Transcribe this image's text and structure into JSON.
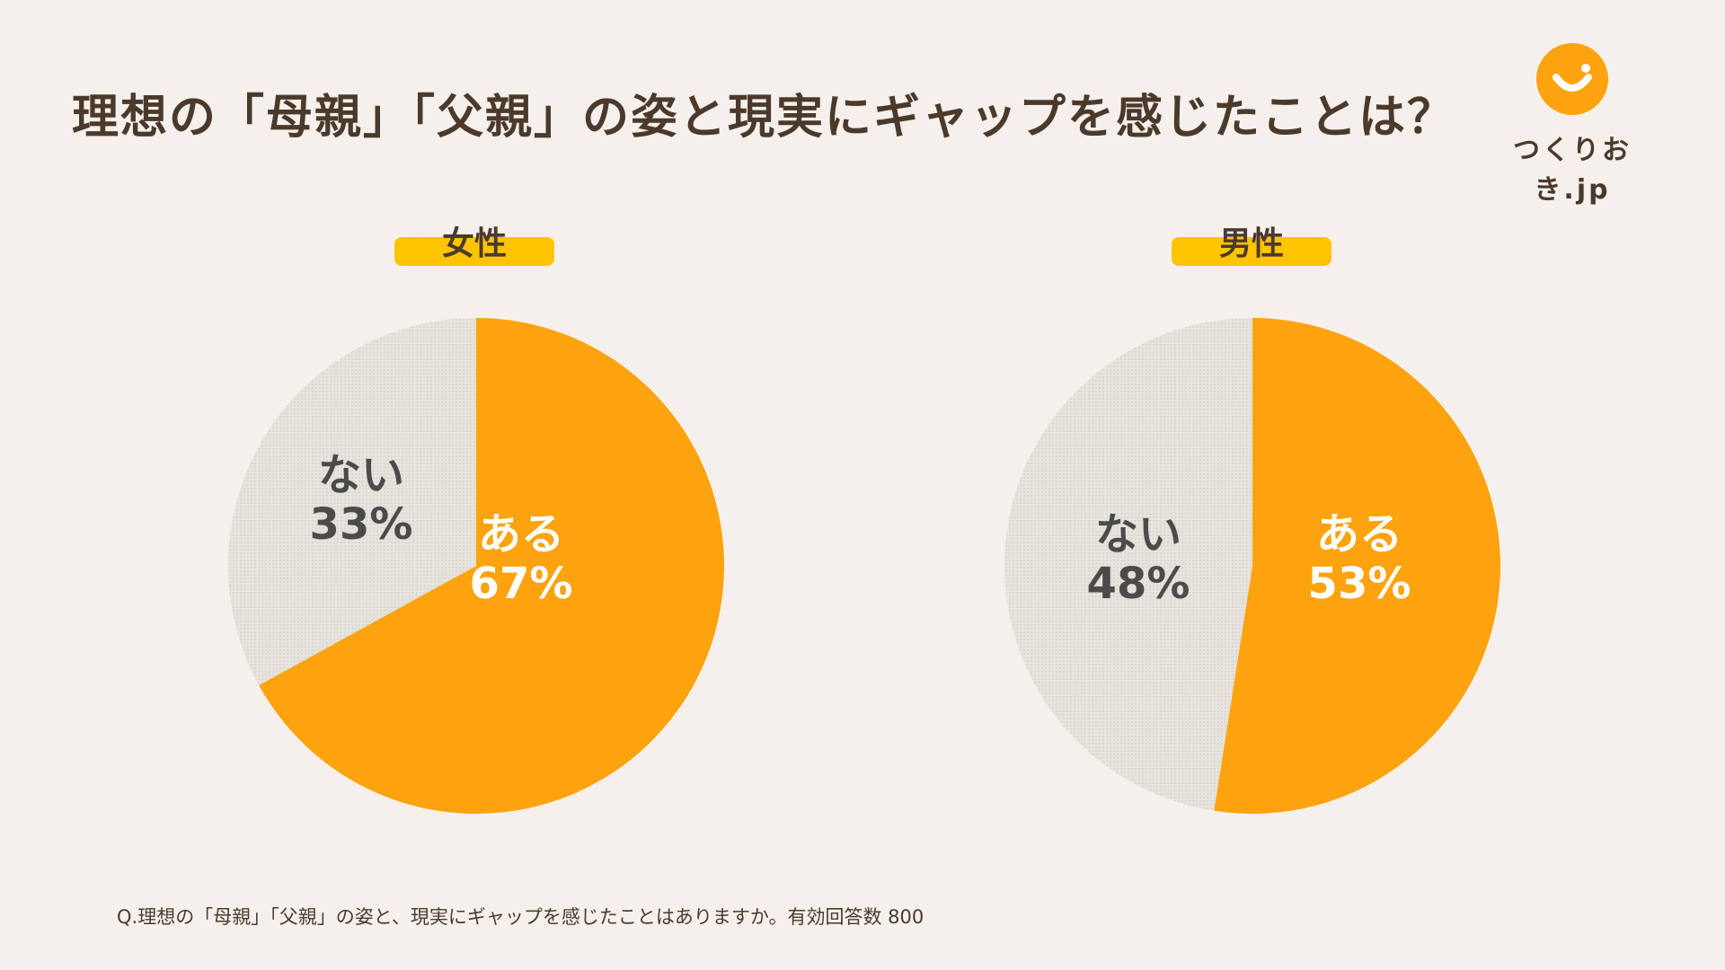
{
  "title": "理想の「母親」「父親」の姿と現実にギャップを感じたことは？",
  "logo": {
    "text": "つくりおき.jp",
    "icon": "smile-icon"
  },
  "colors": {
    "background": "#f5f0eb",
    "accent_orange": "#fca30f",
    "label_yellow": "#ffc400",
    "gray_slice": "#e4e0da",
    "text_dark": "#4b3a2c"
  },
  "footnote": "Q.理想の「母親」「父親」の姿と、現実にギャップを感じたことはありますか。有効回答数 800",
  "chart_data": [
    {
      "type": "pie",
      "title": "女性",
      "categories": [
        "ある",
        "ない"
      ],
      "values": [
        67,
        33
      ],
      "labels": [
        "67%",
        "33%"
      ]
    },
    {
      "type": "pie",
      "title": "男性",
      "categories": [
        "ある",
        "ない"
      ],
      "values": [
        53,
        48
      ],
      "labels": [
        "53%",
        "48%"
      ]
    }
  ]
}
